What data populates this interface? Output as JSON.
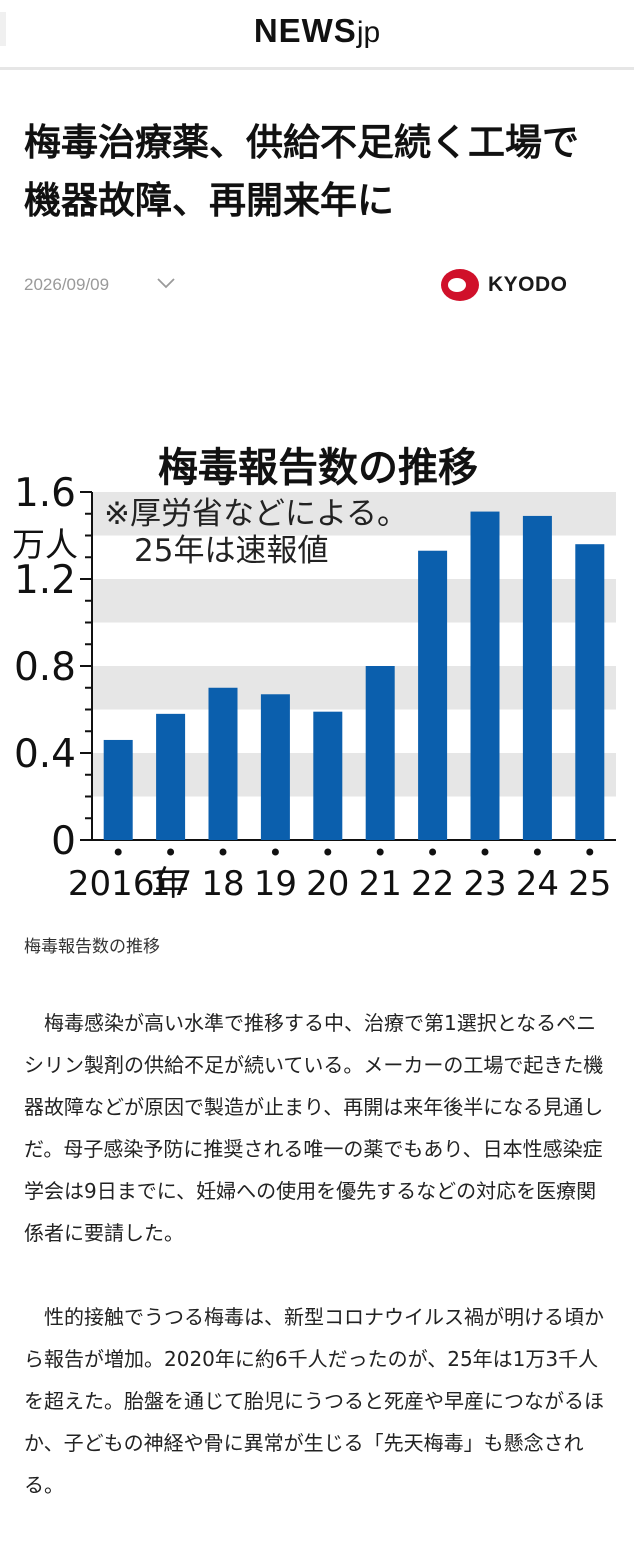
{
  "site": {
    "logo_main": "NEWS",
    "logo_sub": "jp"
  },
  "article": {
    "title": "梅毒治療薬、供給不足続く工場で機器故障、再開来年に",
    "date": "2026/09/09",
    "source": "KYODO",
    "caption": "梅毒報告数の推移",
    "paragraphs": [
      "梅毒感染が高い水準で推移する中、治療で第1選択となるペニシリン製剤の供給不足が続いている。メーカーの工場で起きた機器故障などが原因で製造が止まり、再開は来年後半になる見通しだ。母子感染予防に推奨される唯一の薬でもあり、日本性感染症学会は9日までに、妊婦への使用を優先するなどの対応を医療関係者に要請した。",
      "性的接触でうつる梅毒は、新型コロナウイルス禍が明ける頃から報告が増加。2020年に約6千人だったのが、25年は1万3千人を超えた。胎盤を通じて胎児にうつると死産や早産につながるほか、子どもの神経や骨に異常が生じる「先天梅毒」も懸念される。"
    ]
  },
  "chart_data": {
    "type": "bar",
    "title": "梅毒報告数の推移",
    "unit_label": "万人",
    "notes": [
      "※厚労省などによる。",
      "25年は速報値"
    ],
    "categories": [
      "2016年",
      "17",
      "18",
      "19",
      "20",
      "21",
      "22",
      "23",
      "24",
      "25"
    ],
    "values": [
      0.46,
      0.58,
      0.7,
      0.67,
      0.59,
      0.8,
      1.33,
      1.51,
      1.49,
      1.36
    ],
    "ylim": [
      0,
      1.6
    ],
    "yticks": [
      "0",
      "0.4",
      "0.8",
      "1.2",
      "1.6"
    ],
    "bar_color": "#0b5fad",
    "band_color": "#e6e6e6",
    "grid": "alternating bands"
  },
  "colors": {
    "kyodo_red": "#d0102a"
  },
  "icons": {
    "expand": "chevron-down-icon",
    "source_logo": "kyodo-logo-icon"
  }
}
